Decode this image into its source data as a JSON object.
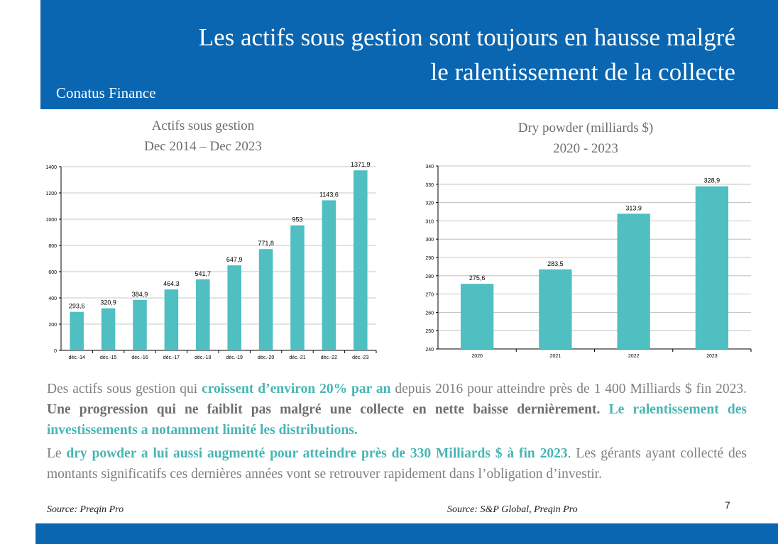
{
  "header": {
    "title_line1": "Les actifs sous gestion sont toujours en hausse malgré",
    "title_line2": "le ralentissement de la collecte",
    "subtitle": "Conatus Finance"
  },
  "chart_left_title": {
    "line1": "Actifs sous gestion",
    "line2": "Dec 2014 – Dec 2023"
  },
  "chart_right_title": {
    "line1": "Dry powder (milliards $)",
    "line2": "2020 - 2023"
  },
  "colors": {
    "accent": "#0a66b0",
    "bar": "#4fbfc1",
    "highlight": "#46b6b4"
  },
  "chart_data": [
    {
      "type": "bar",
      "categories": [
        "déc.-14",
        "déc.-15",
        "déc.-16",
        "déc.-17",
        "déc.-18",
        "déc.-19",
        "déc.-20",
        "déc.-21",
        "déc.-22",
        "déc.-23"
      ],
      "values": [
        293.6,
        320.9,
        384.9,
        464.3,
        541.7,
        647.9,
        771.8,
        953,
        1143.6,
        1371.9
      ],
      "labels": [
        "293,6",
        "320,9",
        "384,9",
        "464,3",
        "541,7",
        "647,9",
        "771,8",
        "953",
        "1143,6",
        "1371,9"
      ],
      "yticks": [
        "0",
        "200",
        "400",
        "600",
        "800",
        "1000",
        "1200",
        "1400"
      ],
      "ylim": [
        0,
        1400
      ],
      "grid": true
    },
    {
      "type": "bar",
      "categories": [
        "2020",
        "2021",
        "2022",
        "2023"
      ],
      "values": [
        275.6,
        283.5,
        313.9,
        328.9
      ],
      "labels": [
        "275,6",
        "283,5",
        "313,9",
        "328,9"
      ],
      "yticks": [
        "240",
        "250",
        "260",
        "270",
        "280",
        "290",
        "300",
        "310",
        "320",
        "330",
        "340"
      ],
      "ylim": [
        240,
        340
      ],
      "grid": true
    }
  ],
  "paragraph1": {
    "t1": "Des actifs sous gestion qui ",
    "h1": "croissent d’environ 20% par an",
    "t2": " depuis 2016 pour atteindre près de 1 400 Milliards $ fin 2023. ",
    "b1": "Une progression qui ne faiblit pas malgré une collecte en nette baisse dernièrement.",
    "t3": " ",
    "h2": "Le ralentissement des investissements a notamment limité les distributions."
  },
  "paragraph2": {
    "t1": "Le ",
    "h1": "dry powder a lui aussi augmenté pour atteindre près de 330 Milliards $ à fin 2023",
    "t2": ". Les gérants ayant collecté des montants significatifs ces dernières années vont se retrouver rapidement dans l’obligation d’investir."
  },
  "source_left": "Source: Preqin Pro",
  "source_right": "Source: S&P Global, Preqin Pro",
  "page_number": "7"
}
